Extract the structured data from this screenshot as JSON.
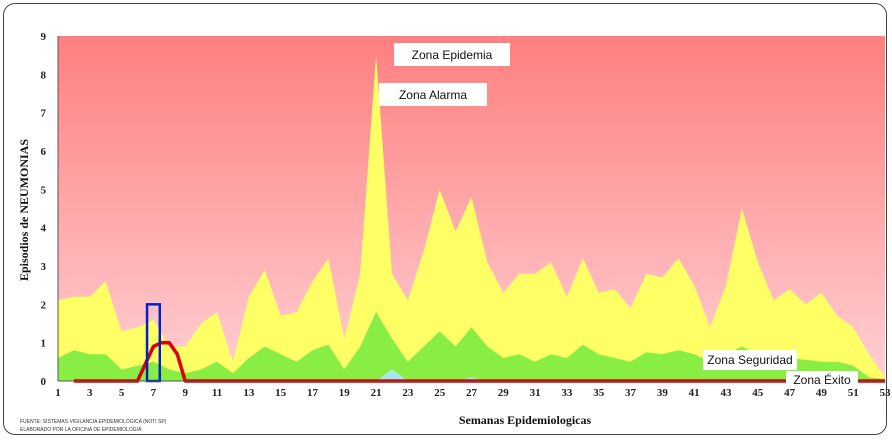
{
  "chart_data": {
    "type": "area",
    "ylabel": "Episodios  de  NEUMONIAS",
    "xlabel": "Semanas Epidemiologicas",
    "ylim": [
      0,
      9
    ],
    "yticks": [
      0,
      1,
      2,
      3,
      4,
      5,
      6,
      7,
      8,
      9
    ],
    "xlim": [
      1,
      53
    ],
    "xticks": [
      1,
      3,
      5,
      7,
      9,
      11,
      13,
      15,
      17,
      19,
      21,
      23,
      25,
      27,
      29,
      31,
      33,
      35,
      37,
      39,
      41,
      43,
      45,
      47,
      49,
      51,
      53
    ],
    "grid": false,
    "zones": {
      "epidemia": "Zona Epidemia",
      "alarma": "Zona Alarma",
      "seguridad": "Zona Seguridad",
      "exito": "Zona Éxito"
    },
    "colors": {
      "epidemia_top": "#ff7f7f",
      "epidemia_bottom": "#ffd0d4",
      "alarma": "#ffff66",
      "seguridad": "#88ee44",
      "exito": "#a8e8f0",
      "actual": "#dd0000",
      "highlight": "#0022cc"
    },
    "series": [
      {
        "key": "alarma",
        "values": [
          2.1,
          2.2,
          2.2,
          2.6,
          1.3,
          1.4,
          1.6,
          0.9,
          0.9,
          1.5,
          1.8,
          0.5,
          2.2,
          2.9,
          1.7,
          1.8,
          2.6,
          3.2,
          1.1,
          2.8,
          8.5,
          2.8,
          2.1,
          3.4,
          5.0,
          3.9,
          4.8,
          3.1,
          2.3,
          2.8,
          2.8,
          3.1,
          2.2,
          3.2,
          2.3,
          2.4,
          1.9,
          2.8,
          2.7,
          3.2,
          2.5,
          1.4,
          2.5,
          4.5,
          3.1,
          2.1,
          2.4,
          2.0,
          2.3,
          1.7,
          1.4,
          0.7,
          0.1
        ]
      },
      {
        "key": "seguridad",
        "values": [
          0.6,
          0.8,
          0.7,
          0.7,
          0.3,
          0.4,
          0.5,
          0.3,
          0.2,
          0.3,
          0.5,
          0.2,
          0.6,
          0.9,
          0.7,
          0.5,
          0.8,
          0.95,
          0.3,
          0.9,
          1.8,
          1.1,
          0.5,
          0.9,
          1.3,
          0.9,
          1.4,
          0.9,
          0.6,
          0.7,
          0.5,
          0.7,
          0.6,
          0.95,
          0.7,
          0.6,
          0.5,
          0.75,
          0.7,
          0.8,
          0.7,
          0.5,
          0.7,
          0.9,
          0.7,
          0.6,
          0.6,
          0.55,
          0.5,
          0.5,
          0.4,
          0.1,
          0.05
        ]
      },
      {
        "key": "exito",
        "values": [
          0,
          0,
          0,
          0,
          0,
          0,
          0,
          0,
          0,
          0,
          0,
          0,
          0,
          0,
          0,
          0,
          0,
          0,
          0,
          0,
          0,
          0.3,
          0,
          0,
          0,
          0,
          0.1,
          0,
          0,
          0,
          0,
          0,
          0,
          0,
          0,
          0,
          0,
          0,
          0,
          0,
          0,
          0,
          0,
          0,
          0,
          0,
          0,
          0,
          0,
          0,
          0,
          0,
          0
        ]
      },
      {
        "key": "actual",
        "type": "line",
        "x": [
          2,
          3,
          4,
          5,
          6,
          7,
          7.5,
          8,
          8.5,
          9,
          10,
          15,
          20,
          25,
          30,
          35,
          40,
          45,
          50,
          53
        ],
        "values": [
          0,
          0,
          0,
          0,
          0,
          0.9,
          1.0,
          1.0,
          0.7,
          0,
          0,
          0,
          0,
          0,
          0,
          0,
          0,
          0,
          0,
          0
        ]
      }
    ],
    "highlight_week": 7,
    "highlight_range": [
      0,
      2
    ]
  },
  "footnote": {
    "line1": "FUENTE: SISTEMAS   VIGILANCIA  EPIDEMIOLOGICA    (NOTI SP)",
    "line2": "ELABORADO  POR LA OFICINA DE EPIDEMIOLOGIA"
  }
}
